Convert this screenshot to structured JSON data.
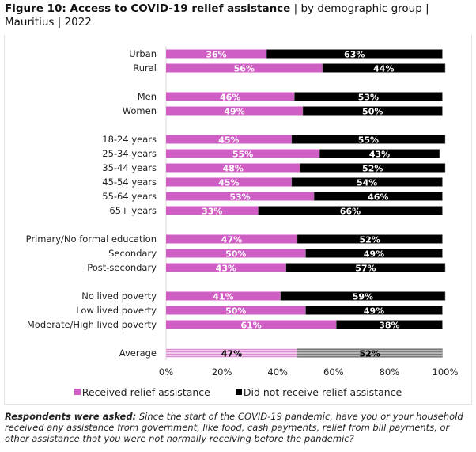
{
  "title": {
    "bold": "Figure 10: Access to COVID-19 relief assistance",
    "rest": " | by demographic group | Mauritius | 2022"
  },
  "colors": {
    "received": "#D05FC5",
    "not_received": "#000000",
    "average_received": "#EDB5E6",
    "average_not_received": "#9E9E9E"
  },
  "chart_data": {
    "type": "bar",
    "orientation": "horizontal",
    "stacked": true,
    "xlim": [
      0,
      100
    ],
    "x_ticks": [
      "0%",
      "20%",
      "40%",
      "60%",
      "80%",
      "100%"
    ],
    "groups": [
      {
        "categories": [
          "Urban",
          "Rural"
        ],
        "received": [
          36,
          56
        ],
        "not_received": [
          63,
          44
        ]
      },
      {
        "categories": [
          "Men",
          "Women"
        ],
        "received": [
          46,
          49
        ],
        "not_received": [
          53,
          50
        ]
      },
      {
        "categories": [
          "18-24 years",
          "25-34 years",
          "35-44 years",
          "45-54 years",
          "55-64 years",
          "65+ years"
        ],
        "received": [
          45,
          55,
          48,
          45,
          53,
          33
        ],
        "not_received": [
          55,
          43,
          52,
          54,
          46,
          66
        ]
      },
      {
        "categories": [
          "Primary/No formal education",
          "Secondary",
          "Post-secondary"
        ],
        "received": [
          47,
          50,
          43
        ],
        "not_received": [
          52,
          49,
          57
        ]
      },
      {
        "categories": [
          "No lived poverty",
          "Low lived poverty",
          "Moderate/High lived poverty"
        ],
        "received": [
          41,
          50,
          61
        ],
        "not_received": [
          59,
          49,
          38
        ]
      },
      {
        "categories": [
          "Average"
        ],
        "received": [
          47
        ],
        "not_received": [
          52
        ],
        "highlight": true
      }
    ],
    "series": [
      {
        "name": "Received relief assistance"
      },
      {
        "name": "Did not receive relief assistance"
      }
    ],
    "legend_position": "bottom",
    "grid": false
  },
  "note": {
    "bold": "Respondents were asked:",
    "text": " Since the start of the COVID-19 pandemic, have you or your household received any assistance from government, like food, cash payments, relief from bill payments, or other assistance that you were not normally receiving before the pandemic?"
  }
}
